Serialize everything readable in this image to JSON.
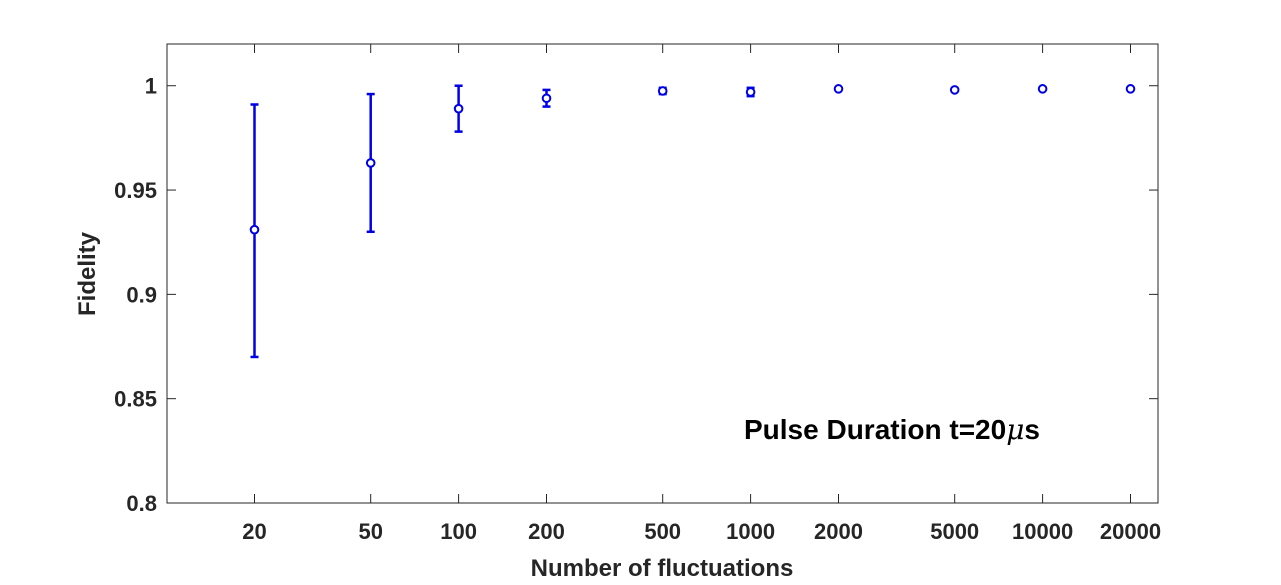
{
  "chart_data": {
    "type": "scatter",
    "xlabel": "Number of fluctuations",
    "ylabel": "Fidelity",
    "x_scale": "log",
    "ylim": [
      0.8,
      1.02
    ],
    "grid": false,
    "x_ticks": [
      "20",
      "50",
      "100",
      "200",
      "500",
      "1000",
      "2000",
      "5000",
      "10000",
      "20000"
    ],
    "y_ticks": [
      "0.8",
      "0.85",
      "0.9",
      "0.95",
      "1"
    ],
    "annotation": {
      "prefix": "Pulse Duration t=20",
      "symbol": "μ",
      "suffix": "s",
      "position": "bottom-right"
    },
    "series": [
      {
        "color": "#0000e6",
        "marker": "circle",
        "points": [
          {
            "x": 20,
            "y": 0.931,
            "err_low": 0.87,
            "err_high": 0.991
          },
          {
            "x": 50,
            "y": 0.963,
            "err_low": 0.93,
            "err_high": 0.996
          },
          {
            "x": 100,
            "y": 0.989,
            "err_low": 0.978,
            "err_high": 1.0
          },
          {
            "x": 200,
            "y": 0.994,
            "err_low": 0.99,
            "err_high": 0.998
          },
          {
            "x": 500,
            "y": 0.9975,
            "err_low": 0.996,
            "err_high": 0.999
          },
          {
            "x": 1000,
            "y": 0.997,
            "err_low": 0.995,
            "err_high": 0.999
          },
          {
            "x": 2000,
            "y": 0.9985,
            "err_low": 0.998,
            "err_high": 0.999
          },
          {
            "x": 5000,
            "y": 0.998,
            "err_low": 0.9975,
            "err_high": 0.9985
          },
          {
            "x": 10000,
            "y": 0.9985,
            "err_low": 0.998,
            "err_high": 0.999
          },
          {
            "x": 20000,
            "y": 0.9985,
            "err_low": 0.998,
            "err_high": 0.999
          }
        ]
      }
    ]
  }
}
